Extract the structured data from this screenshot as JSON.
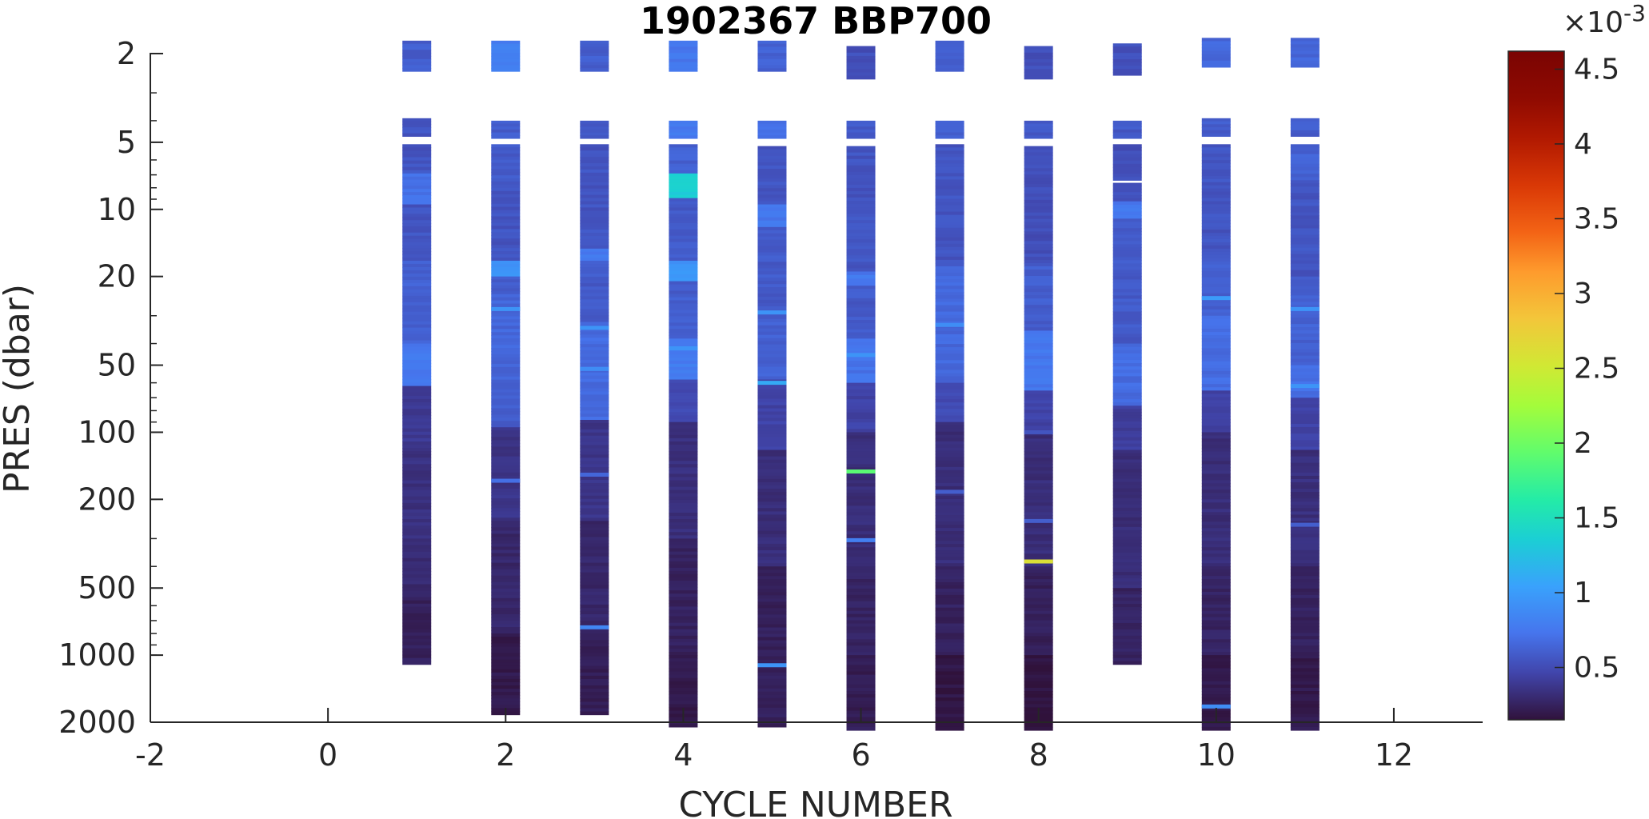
{
  "chart_data": {
    "type": "heatmap",
    "title": "1902367 BBP700",
    "xlabel": "CYCLE NUMBER",
    "ylabel": "PRES (dbar)",
    "xlim": [
      -2,
      13
    ],
    "x_ticks": [
      -2,
      0,
      2,
      4,
      6,
      8,
      10,
      12
    ],
    "ylim": [
      1.6,
      2500
    ],
    "y_scale": "log",
    "y_reversed": true,
    "y_ticks": [
      2,
      5,
      10,
      20,
      50,
      100,
      200,
      500,
      1000,
      2000
    ],
    "colorbar": {
      "colormap": "turbo",
      "range": [
        0.15,
        4.62
      ],
      "ticks": [
        0.5,
        1,
        1.5,
        2,
        2.5,
        3,
        3.5,
        4,
        4.5
      ],
      "multiplier_label": "×10",
      "multiplier_exponent": "-3"
    },
    "profiles": [
      {
        "cycle": 1,
        "max_pres": 1100,
        "surface": [
          [
            1.75,
            2.4,
            0.6
          ],
          [
            3.9,
            4.7,
            0.55
          ],
          [
            5.1,
            6.9,
            0.55
          ],
          [
            6.9,
            9.5,
            0.7
          ],
          [
            9.5,
            17,
            0.55
          ],
          [
            17,
            40,
            0.62
          ],
          [
            40,
            62,
            0.75
          ],
          [
            62,
            110,
            0.4
          ],
          [
            110,
            300,
            0.34
          ],
          [
            300,
            550,
            0.3
          ],
          [
            550,
            1100,
            0.24
          ]
        ],
        "spikes": []
      },
      {
        "cycle": 2,
        "max_pres": 1850,
        "surface": [
          [
            1.75,
            2.4,
            0.8
          ],
          [
            4.0,
            4.8,
            0.6
          ],
          [
            5.1,
            7.5,
            0.58
          ],
          [
            7.5,
            17,
            0.55
          ],
          [
            17,
            20,
            0.95
          ],
          [
            20,
            24,
            0.6
          ],
          [
            24,
            60,
            0.65
          ],
          [
            60,
            95,
            0.6
          ],
          [
            95,
            250,
            0.36
          ],
          [
            250,
            800,
            0.28
          ],
          [
            800,
            1850,
            0.2
          ]
        ],
        "spikes": [
          [
            28,
            0.95
          ],
          [
            165,
            0.7
          ]
        ]
      },
      {
        "cycle": 3,
        "max_pres": 1850,
        "surface": [
          [
            1.75,
            2.4,
            0.6
          ],
          [
            4.0,
            4.8,
            0.58
          ],
          [
            5.1,
            15,
            0.55
          ],
          [
            15,
            17,
            0.75
          ],
          [
            17,
            32,
            0.58
          ],
          [
            32,
            88,
            0.68
          ],
          [
            88,
            250,
            0.36
          ],
          [
            250,
            800,
            0.28
          ],
          [
            800,
            1850,
            0.22
          ]
        ],
        "spikes": [
          [
            34,
            0.95
          ],
          [
            52,
            0.9
          ],
          [
            155,
            0.65
          ],
          [
            750,
            0.85
          ]
        ]
      },
      {
        "cycle": 4,
        "max_pres": 2100,
        "surface": [
          [
            1.75,
            2.4,
            0.75
          ],
          [
            4.0,
            4.8,
            0.75
          ],
          [
            5.1,
            6.9,
            0.62
          ],
          [
            6.9,
            8.9,
            1.35
          ],
          [
            8.9,
            17,
            0.58
          ],
          [
            17,
            21,
            0.95
          ],
          [
            21,
            38,
            0.6
          ],
          [
            38,
            58,
            0.78
          ],
          [
            58,
            90,
            0.5
          ],
          [
            90,
            300,
            0.33
          ],
          [
            300,
            1000,
            0.25
          ],
          [
            1000,
            2100,
            0.2
          ]
        ],
        "spikes": [
          [
            42,
            0.95
          ]
        ]
      },
      {
        "cycle": 5,
        "max_pres": 2100,
        "surface": [
          [
            1.75,
            2.4,
            0.62
          ],
          [
            4.0,
            4.8,
            0.7
          ],
          [
            5.2,
            9.5,
            0.55
          ],
          [
            9.5,
            12,
            0.75
          ],
          [
            12,
            30,
            0.58
          ],
          [
            30,
            58,
            0.62
          ],
          [
            58,
            120,
            0.45
          ],
          [
            120,
            400,
            0.32
          ],
          [
            400,
            2100,
            0.24
          ]
        ],
        "spikes": [
          [
            29,
            0.95
          ],
          [
            60,
            1.1
          ],
          [
            1110,
            0.95
          ]
        ]
      },
      {
        "cycle": 6,
        "max_pres": 2500,
        "surface": [
          [
            1.85,
            2.6,
            0.52
          ],
          [
            4.0,
            4.8,
            0.58
          ],
          [
            5.2,
            19,
            0.55
          ],
          [
            19,
            22,
            0.75
          ],
          [
            22,
            38,
            0.58
          ],
          [
            38,
            60,
            0.72
          ],
          [
            60,
            100,
            0.45
          ],
          [
            100,
            400,
            0.32
          ],
          [
            400,
            1000,
            0.26
          ],
          [
            1000,
            2500,
            0.22
          ]
        ],
        "spikes": [
          [
            45,
            0.95
          ],
          [
            150,
            1.9
          ],
          [
            305,
            0.8
          ]
        ]
      },
      {
        "cycle": 7,
        "max_pres": 2500,
        "surface": [
          [
            1.75,
            2.4,
            0.6
          ],
          [
            4.0,
            4.8,
            0.6
          ],
          [
            5.1,
            18,
            0.55
          ],
          [
            18,
            60,
            0.66
          ],
          [
            60,
            90,
            0.5
          ],
          [
            90,
            400,
            0.32
          ],
          [
            400,
            1000,
            0.25
          ],
          [
            1000,
            2500,
            0.18
          ]
        ],
        "spikes": [
          [
            33,
            0.9
          ],
          [
            185,
            0.6
          ]
        ]
      },
      {
        "cycle": 8,
        "max_pres": 2500,
        "surface": [
          [
            1.85,
            2.6,
            0.52
          ],
          [
            4.0,
            4.8,
            0.58
          ],
          [
            5.2,
            18,
            0.52
          ],
          [
            18,
            35,
            0.6
          ],
          [
            35,
            65,
            0.75
          ],
          [
            65,
            100,
            0.45
          ],
          [
            100,
            400,
            0.32
          ],
          [
            400,
            1000,
            0.24
          ],
          [
            1000,
            2500,
            0.16
          ]
        ],
        "spikes": [
          [
            100,
            0.55
          ],
          [
            250,
            0.6
          ],
          [
            380,
            2.6
          ]
        ]
      },
      {
        "cycle": 9,
        "max_pres": 1100,
        "surface": [
          [
            1.8,
            2.5,
            0.52
          ],
          [
            4.0,
            4.8,
            0.58
          ],
          [
            5.1,
            7.4,
            0.52
          ],
          [
            7.6,
            9.2,
            0.55
          ],
          [
            9.2,
            11,
            0.75
          ],
          [
            11,
            40,
            0.58
          ],
          [
            40,
            76,
            0.68
          ],
          [
            76,
            120,
            0.42
          ],
          [
            120,
            500,
            0.32
          ],
          [
            500,
            1100,
            0.26
          ]
        ],
        "spikes": []
      },
      {
        "cycle": 10,
        "max_pres": 2500,
        "surface": [
          [
            1.7,
            2.3,
            0.65
          ],
          [
            3.9,
            4.7,
            0.6
          ],
          [
            5.1,
            15,
            0.55
          ],
          [
            15,
            30,
            0.6
          ],
          [
            30,
            65,
            0.68
          ],
          [
            65,
            100,
            0.45
          ],
          [
            100,
            400,
            0.32
          ],
          [
            400,
            1000,
            0.26
          ],
          [
            1000,
            2500,
            0.2
          ]
        ],
        "spikes": [
          [
            25,
            1.0
          ],
          [
            1700,
            0.9
          ]
        ]
      },
      {
        "cycle": 11,
        "max_pres": 2500,
        "surface": [
          [
            1.7,
            2.3,
            0.65
          ],
          [
            3.9,
            4.7,
            0.6
          ],
          [
            5.1,
            7.4,
            0.62
          ],
          [
            7.4,
            20,
            0.55
          ],
          [
            20,
            50,
            0.62
          ],
          [
            50,
            70,
            0.7
          ],
          [
            70,
            120,
            0.45
          ],
          [
            120,
            400,
            0.33
          ],
          [
            400,
            1000,
            0.25
          ],
          [
            1000,
            2500,
            0.2
          ]
        ],
        "spikes": [
          [
            28,
            0.95
          ],
          [
            62,
            0.95
          ],
          [
            260,
            0.6
          ]
        ]
      }
    ]
  }
}
